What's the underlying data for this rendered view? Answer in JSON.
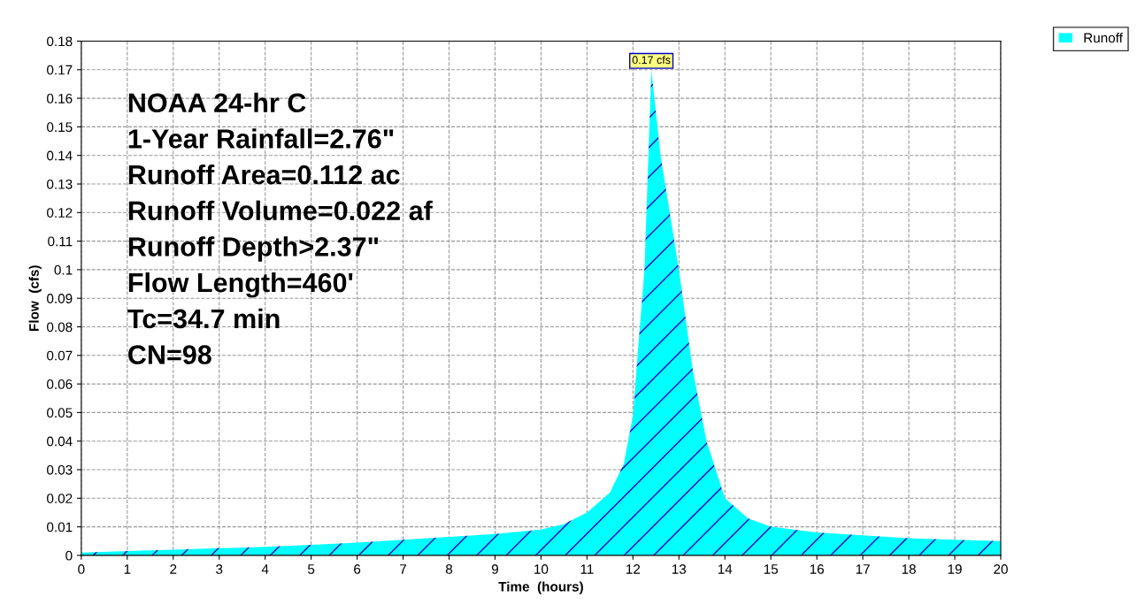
{
  "chart_data": {
    "type": "area",
    "xlabel": "Time  (hours)",
    "ylabel": "Flow  (cfs)",
    "series": [
      {
        "name": "Runoff",
        "color": "#00ffff",
        "x": [
          0,
          1,
          2,
          3,
          4,
          5,
          6,
          7,
          8,
          9,
          10,
          10.5,
          11,
          11.5,
          11.8,
          12,
          12.1,
          12.25,
          12.4,
          12.6,
          12.8,
          13,
          13.3,
          13.6,
          14,
          14.5,
          15,
          16,
          17,
          18,
          19,
          20
        ],
        "values": [
          0.001,
          0.0015,
          0.002,
          0.0025,
          0.003,
          0.0037,
          0.0045,
          0.0055,
          0.0065,
          0.0075,
          0.009,
          0.011,
          0.015,
          0.022,
          0.032,
          0.049,
          0.07,
          0.1,
          0.17,
          0.14,
          0.12,
          0.1,
          0.065,
          0.04,
          0.02,
          0.013,
          0.01,
          0.008,
          0.007,
          0.006,
          0.0055,
          0.005
        ]
      }
    ],
    "xlim": [
      0,
      20
    ],
    "xticks": [
      0,
      1,
      2,
      3,
      4,
      5,
      6,
      7,
      8,
      9,
      10,
      11,
      12,
      13,
      14,
      15,
      16,
      17,
      18,
      19,
      20
    ],
    "ylim": [
      0,
      0.18
    ],
    "yticks": [
      0,
      0.01,
      0.02,
      0.03,
      0.04,
      0.05,
      0.06,
      0.07,
      0.08,
      0.09,
      0.1,
      0.11,
      0.12,
      0.13,
      0.14,
      0.15,
      0.16,
      0.17,
      0.18
    ],
    "grid": true,
    "legend": "top right",
    "annotations": [
      {
        "text": "0.17 cfs",
        "x": 12.4,
        "y": 0.17
      },
      "NOAA 24-hr C\n1-Year Rainfall=2.76\"\nRunoff Area=0.112 ac\nRunoff Volume=0.022 af\nRunoff Depth>2.37\"\nFlow Length=460'\nTc=34.7 min\nCN=98"
    ]
  }
}
